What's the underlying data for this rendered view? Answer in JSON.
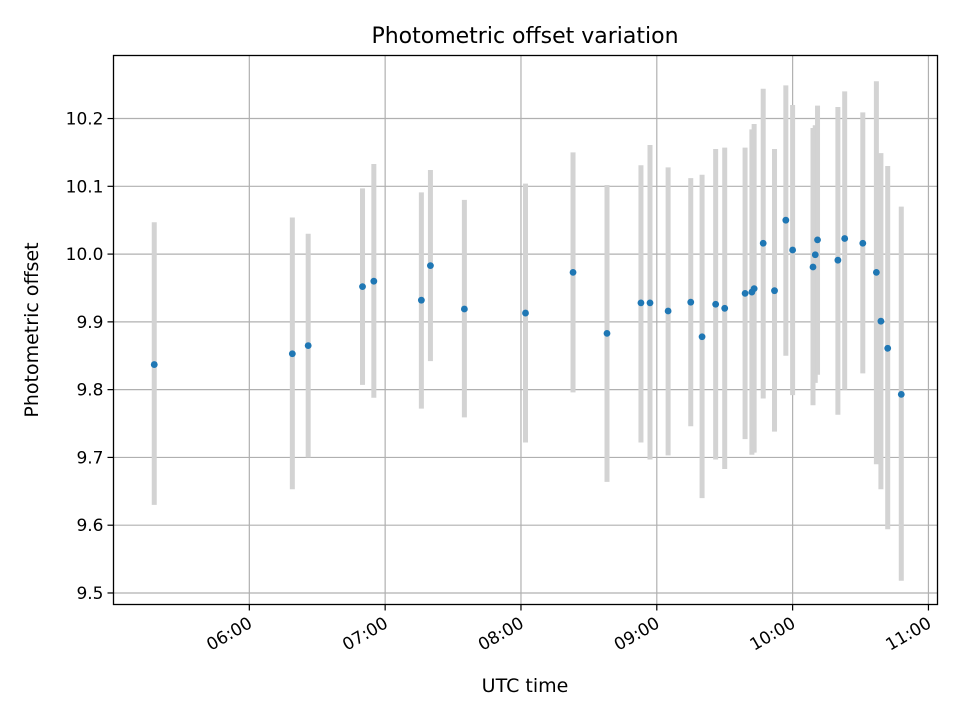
{
  "chart_data": {
    "type": "scatter",
    "title": "Photometric offset variation",
    "xlabel": "UTC time",
    "ylabel": "Photometric offset",
    "x_axis": {
      "kind": "time",
      "range": [
        "05:00",
        "11:04"
      ],
      "ticks": [
        "06:00",
        "07:00",
        "08:00",
        "09:00",
        "10:00",
        "11:00"
      ]
    },
    "y_axis": {
      "range": [
        9.483,
        10.293
      ],
      "ticks": [
        9.5,
        9.6,
        9.7,
        9.8,
        9.9,
        10.0,
        10.1,
        10.2
      ],
      "tick_labels": [
        "9.5",
        "9.6",
        "9.7",
        "9.8",
        "9.9",
        "10.0",
        "10.1",
        "10.2"
      ]
    },
    "grid": true,
    "marker_color": "#1f77b4",
    "errorbar_color": "#d3d3d3",
    "points": [
      {
        "x": "05:18",
        "y": 9.837,
        "lo": 9.63,
        "hi": 10.047
      },
      {
        "x": "06:19",
        "y": 9.853,
        "lo": 9.653,
        "hi": 10.054
      },
      {
        "x": "06:26",
        "y": 9.865,
        "lo": 9.7,
        "hi": 10.03
      },
      {
        "x": "06:50",
        "y": 9.952,
        "lo": 9.807,
        "hi": 10.097
      },
      {
        "x": "06:55",
        "y": 9.96,
        "lo": 9.788,
        "hi": 10.133
      },
      {
        "x": "07:16",
        "y": 9.932,
        "lo": 9.772,
        "hi": 10.091
      },
      {
        "x": "07:20",
        "y": 9.983,
        "lo": 9.842,
        "hi": 10.124
      },
      {
        "x": "07:35",
        "y": 9.919,
        "lo": 9.759,
        "hi": 10.08
      },
      {
        "x": "08:02",
        "y": 9.913,
        "lo": 9.722,
        "hi": 10.104
      },
      {
        "x": "08:23",
        "y": 9.973,
        "lo": 9.796,
        "hi": 10.15
      },
      {
        "x": "08:38",
        "y": 9.883,
        "lo": 9.664,
        "hi": 10.102
      },
      {
        "x": "08:53",
        "y": 9.928,
        "lo": 9.722,
        "hi": 10.131
      },
      {
        "x": "08:57",
        "y": 9.928,
        "lo": 9.697,
        "hi": 10.161
      },
      {
        "x": "09:05",
        "y": 9.916,
        "lo": 9.703,
        "hi": 10.128
      },
      {
        "x": "09:15",
        "y": 9.929,
        "lo": 9.746,
        "hi": 10.112
      },
      {
        "x": "09:20",
        "y": 9.878,
        "lo": 9.64,
        "hi": 10.117
      },
      {
        "x": "09:26",
        "y": 9.926,
        "lo": 9.697,
        "hi": 10.155
      },
      {
        "x": "09:30",
        "y": 9.92,
        "lo": 9.683,
        "hi": 10.157
      },
      {
        "x": "09:39",
        "y": 9.942,
        "lo": 9.727,
        "hi": 10.157
      },
      {
        "x": "09:42",
        "y": 9.944,
        "lo": 9.704,
        "hi": 10.184
      },
      {
        "x": "09:43",
        "y": 9.949,
        "lo": 9.707,
        "hi": 10.192
      },
      {
        "x": "09:47",
        "y": 10.016,
        "lo": 9.787,
        "hi": 10.244
      },
      {
        "x": "09:52",
        "y": 9.946,
        "lo": 9.738,
        "hi": 10.155
      },
      {
        "x": "09:57",
        "y": 10.05,
        "lo": 9.85,
        "hi": 10.249
      },
      {
        "x": "10:00",
        "y": 10.006,
        "lo": 9.792,
        "hi": 10.22
      },
      {
        "x": "10:09",
        "y": 9.981,
        "lo": 9.777,
        "hi": 10.186
      },
      {
        "x": "10:10",
        "y": 9.999,
        "lo": 9.81,
        "hi": 10.19
      },
      {
        "x": "10:11",
        "y": 10.021,
        "lo": 9.822,
        "hi": 10.219
      },
      {
        "x": "10:20",
        "y": 9.991,
        "lo": 9.763,
        "hi": 10.217
      },
      {
        "x": "10:23",
        "y": 10.023,
        "lo": 9.8,
        "hi": 10.24
      },
      {
        "x": "10:31",
        "y": 10.016,
        "lo": 9.824,
        "hi": 10.209
      },
      {
        "x": "10:37",
        "y": 9.973,
        "lo": 9.69,
        "hi": 10.255
      },
      {
        "x": "10:39",
        "y": 9.901,
        "lo": 9.653,
        "hi": 10.149
      },
      {
        "x": "10:42",
        "y": 9.861,
        "lo": 9.594,
        "hi": 10.13
      },
      {
        "x": "10:48",
        "y": 9.793,
        "lo": 9.518,
        "hi": 10.07
      }
    ]
  }
}
